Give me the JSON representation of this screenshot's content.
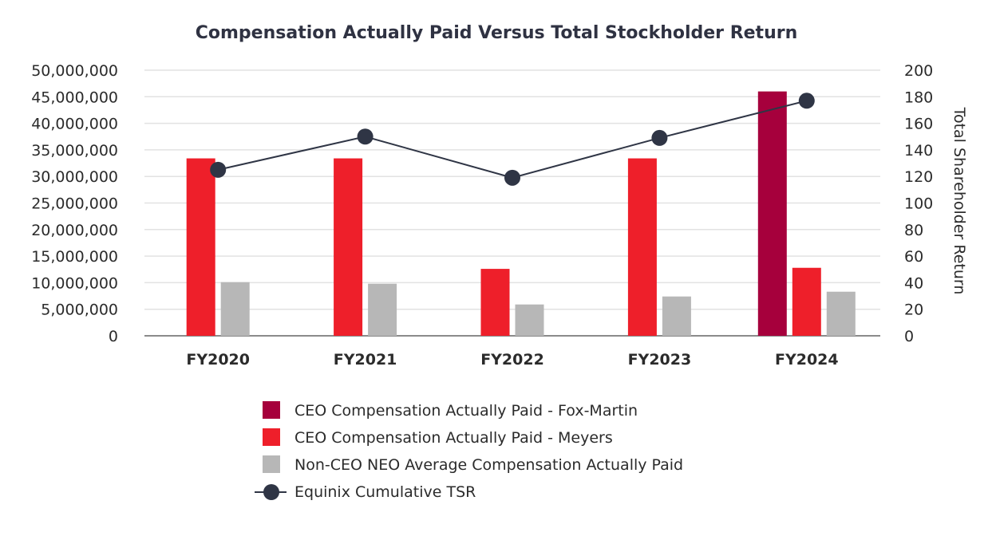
{
  "chart_data": {
    "type": "bar",
    "title": "Compensation Actually Paid Versus Total Stockholder Return",
    "categories": [
      "FY2020",
      "FY2021",
      "FY2022",
      "FY2023",
      "FY2024"
    ],
    "series": [
      {
        "name": "CEO Compensation Actually Paid - Fox-Martin",
        "kind": "bar",
        "axis": "left",
        "color": "#a6003c",
        "values": [
          null,
          null,
          null,
          null,
          46000000
        ]
      },
      {
        "name": "CEO Compensation Actually Paid - Meyers",
        "kind": "bar",
        "axis": "left",
        "color": "#ee1f2a",
        "values": [
          33400000,
          33400000,
          12600000,
          33400000,
          12800000
        ]
      },
      {
        "name": "Non-CEO NEO Average Compensation Actually Paid",
        "kind": "bar",
        "axis": "left",
        "color": "#b7b7b7",
        "values": [
          10100000,
          9800000,
          5900000,
          7400000,
          8300000
        ]
      },
      {
        "name": "Equinix Cumulative TSR",
        "kind": "line",
        "axis": "right",
        "color": "#2f3545",
        "values": [
          125,
          150,
          119,
          149,
          177
        ]
      }
    ],
    "left_axis": {
      "label": "",
      "ylim": [
        0,
        50000000
      ],
      "ticks": [
        0,
        5000000,
        10000000,
        15000000,
        20000000,
        25000000,
        30000000,
        35000000,
        40000000,
        45000000,
        50000000
      ],
      "tick_labels": [
        "0",
        "5,000,000",
        "10,000,000",
        "15,000,000",
        "20,000,000",
        "25,000,000",
        "30,000,000",
        "35,000,000",
        "40,000,000",
        "45,000,000",
        "50,000,000"
      ]
    },
    "right_axis": {
      "label": "Total Shareholder Return",
      "ylim": [
        0,
        200
      ],
      "ticks": [
        0,
        20,
        40,
        60,
        80,
        100,
        120,
        140,
        160,
        180,
        200
      ],
      "tick_labels": [
        "0",
        "20",
        "40",
        "60",
        "80",
        "100",
        "120",
        "140",
        "160",
        "180",
        "200"
      ]
    },
    "grid": true,
    "legend_position": "bottom"
  }
}
